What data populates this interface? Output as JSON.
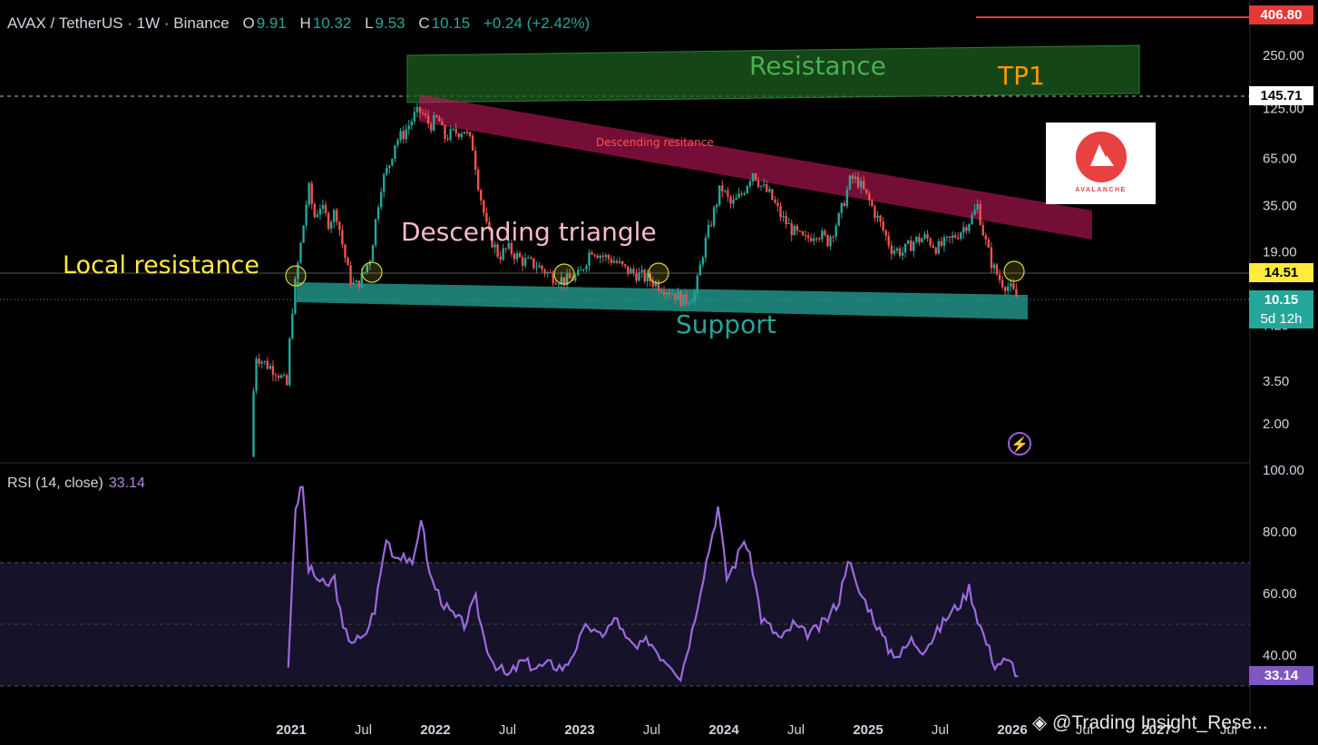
{
  "header": {
    "pair": "AVAX / TetherUS · 1W · Binance",
    "open_label": "O",
    "open": "9.91",
    "high_label": "H",
    "high": "10.32",
    "low_label": "L",
    "low": "9.53",
    "close_label": "C",
    "close": "10.15",
    "change": "+0.24 (+2.42%)"
  },
  "rsi_header": {
    "label": "RSI (14, close)",
    "value": "33.14"
  },
  "annotations": {
    "resistance": "Resistance",
    "tp1": "TP1",
    "descending_resistance": "Descending resitance",
    "descending_triangle": "Descending triangle",
    "local_resistance": "Local resistance",
    "support": "Support"
  },
  "logo": {
    "text": "AVALANCHE"
  },
  "watermark": "@Trading Insight_Rese...",
  "price_tags": {
    "top": "406.80",
    "tp": "145.71",
    "local": "14.51",
    "last": "10.15",
    "countdown": "5d 12h",
    "rsi": "33.14"
  },
  "colors": {
    "up": "#26a69a",
    "down": "#ef5350",
    "rsi_line": "#9c6ade",
    "resistance_zone": "#1b5e20",
    "descending_zone": "#c2185b",
    "support_zone": "#26a69a"
  },
  "chart_data": {
    "type": "candlestick",
    "scale": "log",
    "price_axis_ticks": [
      "250.00",
      "125.00",
      "65.00",
      "35.00",
      "19.00",
      "7.29",
      "3.50",
      "2.00"
    ],
    "rsi_axis_ticks": [
      "100.00",
      "80.00",
      "60.00",
      "40.00"
    ],
    "time_axis_ticks": [
      "2021",
      "Jul",
      "2022",
      "Jul",
      "2023",
      "Jul",
      "2024",
      "Jul",
      "2025",
      "Jul",
      "2026",
      "Jul",
      "2027",
      "Jul"
    ],
    "rsi_band": [
      30,
      70
    ],
    "price_path": [
      [
        2020.72,
        1.3
      ],
      [
        2020.75,
        5.0
      ],
      [
        2020.82,
        4.4
      ],
      [
        2020.9,
        4.0
      ],
      [
        2020.97,
        3.3
      ],
      [
        2021.0,
        8.0
      ],
      [
        2021.03,
        13.0
      ],
      [
        2021.08,
        25
      ],
      [
        2021.12,
        45
      ],
      [
        2021.16,
        30
      ],
      [
        2021.2,
        35
      ],
      [
        2021.26,
        28
      ],
      [
        2021.31,
        33
      ],
      [
        2021.36,
        20
      ],
      [
        2021.4,
        14
      ],
      [
        2021.44,
        12
      ],
      [
        2021.5,
        14
      ],
      [
        2021.55,
        18
      ],
      [
        2021.62,
        45
      ],
      [
        2021.68,
        60
      ],
      [
        2021.72,
        80
      ],
      [
        2021.78,
        90
      ],
      [
        2021.86,
        115
      ],
      [
        2021.9,
        120
      ],
      [
        2021.96,
        100
      ],
      [
        2022.02,
        110
      ],
      [
        2022.06,
        85
      ],
      [
        2022.12,
        90
      ],
      [
        2022.2,
        95
      ],
      [
        2022.26,
        75
      ],
      [
        2022.3,
        45
      ],
      [
        2022.36,
        25
      ],
      [
        2022.44,
        18
      ],
      [
        2022.5,
        20
      ],
      [
        2022.6,
        17
      ],
      [
        2022.7,
        16
      ],
      [
        2022.8,
        14
      ],
      [
        2022.9,
        13
      ],
      [
        2023.0,
        14
      ],
      [
        2023.08,
        20
      ],
      [
        2023.16,
        18
      ],
      [
        2023.24,
        17
      ],
      [
        2023.32,
        15
      ],
      [
        2023.42,
        14
      ],
      [
        2023.5,
        13
      ],
      [
        2023.58,
        12
      ],
      [
        2023.66,
        11
      ],
      [
        2023.72,
        10
      ],
      [
        2023.8,
        11
      ],
      [
        2023.86,
        20
      ],
      [
        2023.92,
        30
      ],
      [
        2023.98,
        45
      ],
      [
        2024.05,
        35
      ],
      [
        2024.12,
        40
      ],
      [
        2024.2,
        55
      ],
      [
        2024.26,
        45
      ],
      [
        2024.32,
        40
      ],
      [
        2024.4,
        30
      ],
      [
        2024.48,
        25
      ],
      [
        2024.56,
        22
      ],
      [
        2024.64,
        25
      ],
      [
        2024.72,
        22
      ],
      [
        2024.8,
        30
      ],
      [
        2024.88,
        50
      ],
      [
        2024.93,
        48
      ],
      [
        2025.0,
        38
      ],
      [
        2025.08,
        28
      ],
      [
        2025.16,
        20
      ],
      [
        2025.24,
        19
      ],
      [
        2025.32,
        22
      ],
      [
        2025.4,
        23
      ],
      [
        2025.48,
        20
      ],
      [
        2025.56,
        22
      ],
      [
        2025.64,
        25
      ],
      [
        2025.72,
        30
      ],
      [
        2025.76,
        35
      ],
      [
        2025.8,
        24
      ],
      [
        2025.86,
        16
      ],
      [
        2025.92,
        13
      ],
      [
        2025.98,
        12
      ],
      [
        2026.04,
        10.15
      ]
    ],
    "rsi_path": [
      [
        2020.98,
        36
      ],
      [
        2021.03,
        88
      ],
      [
        2021.08,
        95
      ],
      [
        2021.12,
        68
      ],
      [
        2021.18,
        65
      ],
      [
        2021.24,
        62
      ],
      [
        2021.3,
        65
      ],
      [
        2021.36,
        48
      ],
      [
        2021.42,
        45
      ],
      [
        2021.5,
        45
      ],
      [
        2021.58,
        55
      ],
      [
        2021.66,
        78
      ],
      [
        2021.72,
        72
      ],
      [
        2021.78,
        73
      ],
      [
        2021.84,
        68
      ],
      [
        2021.9,
        85
      ],
      [
        2021.96,
        66
      ],
      [
        2022.02,
        60
      ],
      [
        2022.08,
        55
      ],
      [
        2022.14,
        52
      ],
      [
        2022.2,
        50
      ],
      [
        2022.28,
        58
      ],
      [
        2022.34,
        45
      ],
      [
        2022.4,
        38
      ],
      [
        2022.5,
        33
      ],
      [
        2022.6,
        38
      ],
      [
        2022.7,
        36
      ],
      [
        2022.8,
        37
      ],
      [
        2022.9,
        36
      ],
      [
        2023.0,
        45
      ],
      [
        2023.06,
        50
      ],
      [
        2023.12,
        46
      ],
      [
        2023.18,
        48
      ],
      [
        2023.26,
        52
      ],
      [
        2023.32,
        45
      ],
      [
        2023.4,
        42
      ],
      [
        2023.48,
        45
      ],
      [
        2023.56,
        40
      ],
      [
        2023.64,
        37
      ],
      [
        2023.7,
        33
      ],
      [
        2023.78,
        48
      ],
      [
        2023.84,
        62
      ],
      [
        2023.9,
        75
      ],
      [
        2023.96,
        88
      ],
      [
        2024.02,
        65
      ],
      [
        2024.08,
        70
      ],
      [
        2024.14,
        78
      ],
      [
        2024.2,
        68
      ],
      [
        2024.26,
        52
      ],
      [
        2024.34,
        48
      ],
      [
        2024.4,
        45
      ],
      [
        2024.48,
        50
      ],
      [
        2024.56,
        47
      ],
      [
        2024.64,
        48
      ],
      [
        2024.72,
        52
      ],
      [
        2024.8,
        58
      ],
      [
        2024.86,
        72
      ],
      [
        2024.92,
        62
      ],
      [
        2025.0,
        56
      ],
      [
        2025.06,
        50
      ],
      [
        2025.14,
        42
      ],
      [
        2025.22,
        40
      ],
      [
        2025.3,
        45
      ],
      [
        2025.38,
        42
      ],
      [
        2025.46,
        46
      ],
      [
        2025.54,
        52
      ],
      [
        2025.6,
        55
      ],
      [
        2025.66,
        58
      ],
      [
        2025.7,
        62
      ],
      [
        2025.76,
        52
      ],
      [
        2025.82,
        44
      ],
      [
        2025.88,
        37
      ],
      [
        2025.94,
        38
      ],
      [
        2026.0,
        37
      ],
      [
        2026.04,
        33.14
      ]
    ]
  }
}
